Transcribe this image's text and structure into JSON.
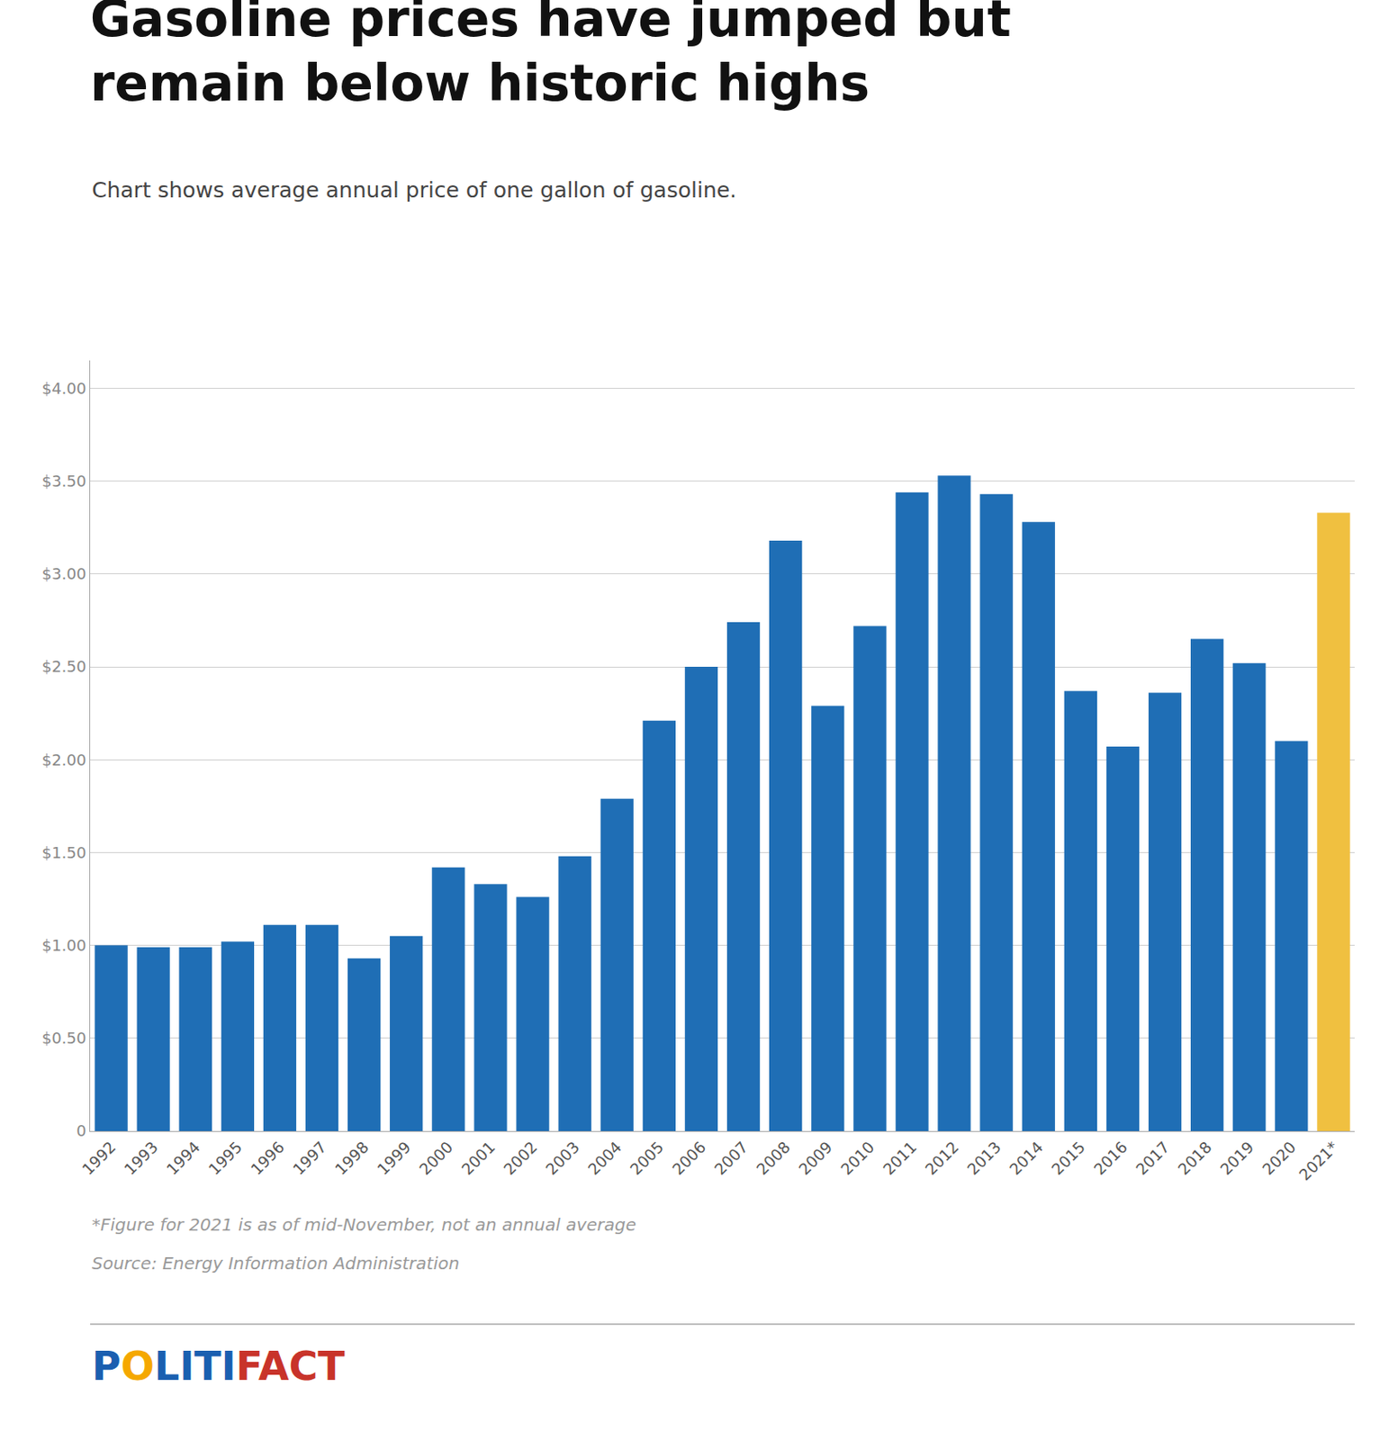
{
  "chart_data": {
    "type": "bar",
    "title": "Gasoline prices have jumped but\nremain below historic highs",
    "subtitle": "Chart shows average annual price of one gallon of gasoline.",
    "categories": [
      "1992",
      "1993",
      "1994",
      "1995",
      "1996",
      "1997",
      "1998",
      "1999",
      "2000",
      "2001",
      "2002",
      "2003",
      "2004",
      "2005",
      "2006",
      "2007",
      "2008",
      "2009",
      "2010",
      "2011",
      "2012",
      "2013",
      "2014",
      "2015",
      "2016",
      "2017",
      "2018",
      "2019",
      "2020",
      "2021*"
    ],
    "values": [
      1.0,
      0.99,
      0.99,
      1.02,
      1.11,
      1.11,
      0.93,
      1.05,
      1.42,
      1.33,
      1.26,
      1.48,
      1.79,
      2.21,
      2.5,
      2.74,
      3.18,
      2.29,
      2.72,
      3.44,
      3.53,
      3.43,
      3.28,
      2.37,
      2.07,
      2.36,
      2.65,
      2.52,
      2.1,
      3.33
    ],
    "colors": [
      "#1f6eb5",
      "#1f6eb5",
      "#1f6eb5",
      "#1f6eb5",
      "#1f6eb5",
      "#1f6eb5",
      "#1f6eb5",
      "#1f6eb5",
      "#1f6eb5",
      "#1f6eb5",
      "#1f6eb5",
      "#1f6eb5",
      "#1f6eb5",
      "#1f6eb5",
      "#1f6eb5",
      "#1f6eb5",
      "#1f6eb5",
      "#1f6eb5",
      "#1f6eb5",
      "#1f6eb5",
      "#1f6eb5",
      "#1f6eb5",
      "#1f6eb5",
      "#1f6eb5",
      "#1f6eb5",
      "#1f6eb5",
      "#1f6eb5",
      "#1f6eb5",
      "#1f6eb5",
      "#f0c040"
    ],
    "ylim": [
      0,
      4.15
    ],
    "yticks": [
      0,
      {
        "value": 0.5,
        "label": "$0.50"
      },
      {
        "value": 1.0,
        "label": "$1.00"
      },
      {
        "value": 1.5,
        "label": "$1.50"
      },
      {
        "value": 2.0,
        "label": "$2.00"
      },
      {
        "value": 2.5,
        "label": "$2.50"
      },
      {
        "value": 3.0,
        "label": "$3.00"
      },
      {
        "value": 3.5,
        "label": "$3.50"
      },
      {
        "value": 4.0,
        "label": "$4.00"
      }
    ],
    "grid": true,
    "annotations": [
      {
        "text": "*Figure for 2021 is as of mid-November, not an annual average"
      },
      {
        "text": "Source: Energy Information Administration"
      },
      {
        "text": "P",
        "color": "#1a5fb0"
      },
      {
        "text": "O",
        "color": "#f5a800"
      },
      {
        "text": "LITI",
        "color": "#1a5fb0"
      },
      {
        "text": "FACT",
        "color": "#c8332a"
      }
    ]
  }
}
